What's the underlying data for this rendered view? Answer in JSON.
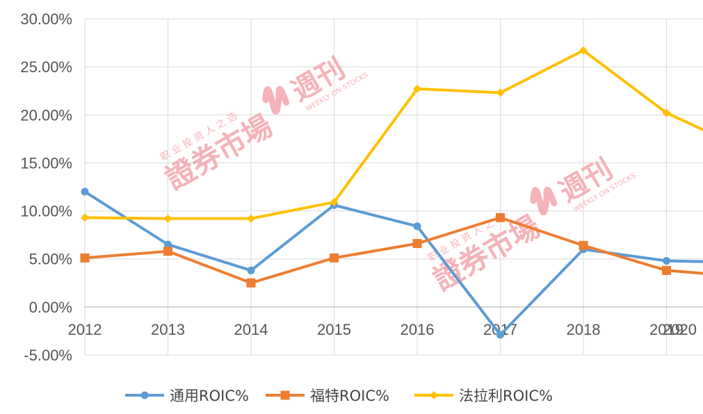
{
  "chart_data": {
    "type": "line",
    "title": "",
    "xlabel": "",
    "ylabel": "",
    "categories": [
      "2012",
      "2013",
      "2014",
      "2015",
      "2016",
      "2017",
      "2018",
      "2019",
      "2020"
    ],
    "ylim": [
      -5,
      30
    ],
    "y_tick_labels": [
      "30.00%",
      "25.00%",
      "20.00%",
      "15.00%",
      "10.00%",
      "5.00%",
      "0.00%",
      "-5.00%"
    ],
    "y_tick_values": [
      30,
      25,
      20,
      15,
      10,
      5,
      0,
      -5
    ],
    "grid": true,
    "legend_position": "bottom",
    "series": [
      {
        "name": "通用ROIC%",
        "color": "#5b9bd5",
        "marker": "circle",
        "values": [
          12.0,
          6.5,
          3.8,
          10.6,
          8.4,
          -2.9,
          6.0,
          4.8,
          4.6
        ],
        "trailing_value": 5.5
      },
      {
        "name": "福特ROIC%",
        "color": "#ed7d31",
        "marker": "square",
        "values": [
          5.1,
          5.8,
          2.5,
          5.1,
          6.6,
          9.3,
          6.4,
          3.8,
          3.1
        ],
        "trailing_value": 3.7
      },
      {
        "name": "法拉利ROIC%",
        "color": "#ffc000",
        "marker": "diamond",
        "values": [
          9.3,
          9.2,
          9.2,
          10.9,
          22.7,
          22.3,
          26.7,
          20.2,
          16.2
        ],
        "trailing_value": 17.8
      }
    ]
  },
  "watermark": {
    "top_line": "职 业 投 资 人 之 选",
    "main": "證券市場",
    "suffix": "週刊",
    "sub": "WEEKLY ON STOCKS"
  }
}
